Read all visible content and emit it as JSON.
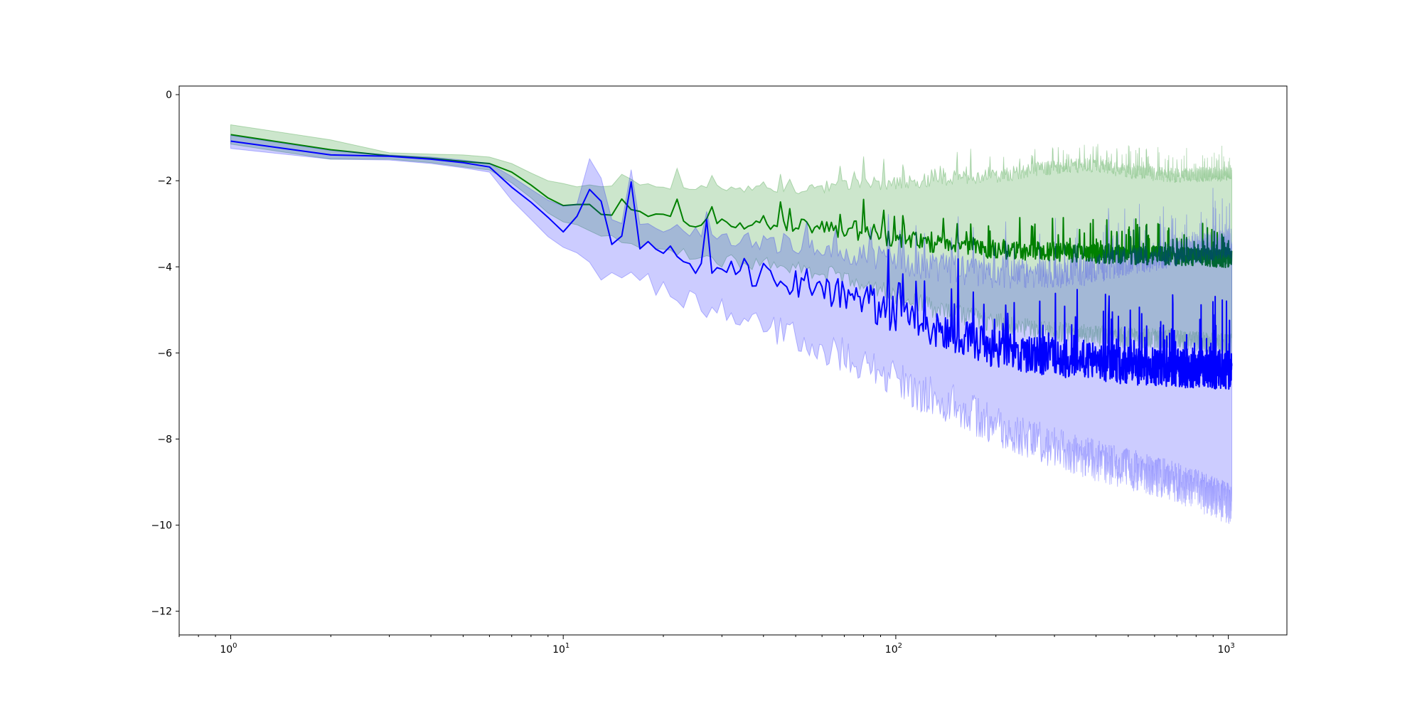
{
  "chart_data": {
    "type": "line",
    "title": "",
    "xlabel": "",
    "ylabel": "",
    "xscale": "log",
    "xlim": [
      0.7,
      1500
    ],
    "ylim": [
      -12.55,
      0.2
    ],
    "grid": false,
    "legend": "none",
    "x_ticks": [
      {
        "base": "10",
        "exp": "0",
        "value": 1
      },
      {
        "base": "10",
        "exp": "1",
        "value": 10
      },
      {
        "base": "10",
        "exp": "2",
        "value": 100
      },
      {
        "base": "10",
        "exp": "3",
        "value": 1000
      }
    ],
    "y_ticks": [
      {
        "label": "0",
        "value": 0
      },
      {
        "label": "−2",
        "value": -2
      },
      {
        "label": "−4",
        "value": -4
      },
      {
        "label": "−6",
        "value": -6
      },
      {
        "label": "−8",
        "value": -8
      },
      {
        "label": "−10",
        "value": -10
      },
      {
        "label": "−12",
        "value": -12
      }
    ],
    "series": [
      {
        "color": "#008000",
        "band_color": "#008000",
        "band_opacity": 0.2,
        "mean_points": [
          [
            1,
            -0.93
          ],
          [
            2,
            -1.28
          ],
          [
            3,
            -1.42
          ],
          [
            4,
            -1.48
          ],
          [
            5,
            -1.55
          ],
          [
            6,
            -1.6
          ],
          [
            7,
            -1.8
          ],
          [
            8,
            -2.1
          ],
          [
            9,
            -2.4
          ],
          [
            10,
            -2.55
          ],
          [
            12,
            -2.6
          ],
          [
            14,
            -2.85
          ],
          [
            16,
            -2.75
          ],
          [
            20,
            -2.85
          ],
          [
            25,
            -2.95
          ],
          [
            30,
            -3.0
          ],
          [
            40,
            -3.0
          ],
          [
            50,
            -3.05
          ],
          [
            60,
            -3.1
          ],
          [
            80,
            -3.25
          ],
          [
            100,
            -3.35
          ],
          [
            150,
            -3.5
          ],
          [
            200,
            -3.6
          ],
          [
            300,
            -3.65
          ],
          [
            400,
            -3.7
          ],
          [
            500,
            -3.72
          ],
          [
            700,
            -3.75
          ],
          [
            1000,
            -3.8
          ]
        ],
        "upper_points": [
          [
            1,
            -0.7
          ],
          [
            2,
            -1.05
          ],
          [
            3,
            -1.35
          ],
          [
            4,
            -1.38
          ],
          [
            5,
            -1.4
          ],
          [
            6,
            -1.45
          ],
          [
            7,
            -1.6
          ],
          [
            8,
            -1.82
          ],
          [
            9,
            -2.0
          ],
          [
            10,
            -2.1
          ],
          [
            12,
            -2.15
          ],
          [
            14,
            -2.2
          ],
          [
            16,
            -2.05
          ],
          [
            20,
            -2.15
          ],
          [
            25,
            -2.2
          ],
          [
            30,
            -2.25
          ],
          [
            40,
            -2.25
          ],
          [
            50,
            -2.25
          ],
          [
            60,
            -2.2
          ],
          [
            80,
            -2.15
          ],
          [
            100,
            -2.1
          ],
          [
            150,
            -2.0
          ],
          [
            200,
            -1.95
          ],
          [
            300,
            -1.75
          ],
          [
            400,
            -1.7
          ],
          [
            500,
            -1.85
          ],
          [
            700,
            -1.95
          ],
          [
            1000,
            -1.9
          ]
        ],
        "lower_points": [
          [
            1,
            -1.15
          ],
          [
            2,
            -1.5
          ],
          [
            3,
            -1.5
          ],
          [
            4,
            -1.58
          ],
          [
            5,
            -1.68
          ],
          [
            6,
            -1.75
          ],
          [
            7,
            -2.05
          ],
          [
            8,
            -2.4
          ],
          [
            9,
            -2.75
          ],
          [
            10,
            -3.0
          ],
          [
            12,
            -3.1
          ],
          [
            14,
            -3.3
          ],
          [
            16,
            -3.4
          ],
          [
            20,
            -3.55
          ],
          [
            25,
            -3.7
          ],
          [
            30,
            -3.8
          ],
          [
            40,
            -3.85
          ],
          [
            50,
            -3.95
          ],
          [
            60,
            -4.05
          ],
          [
            80,
            -4.3
          ],
          [
            100,
            -4.6
          ],
          [
            150,
            -5.0
          ],
          [
            200,
            -5.2
          ],
          [
            300,
            -5.4
          ],
          [
            400,
            -5.5
          ],
          [
            500,
            -5.55
          ],
          [
            700,
            -5.6
          ],
          [
            1000,
            -5.7
          ]
        ],
        "noise_start": 10,
        "mean_noise_amp": 0.22,
        "band_noise_amp": 0.35
      },
      {
        "color": "#0000ff",
        "band_color": "#0000ff",
        "band_opacity": 0.2,
        "mean_points": [
          [
            1,
            -1.08
          ],
          [
            2,
            -1.4
          ],
          [
            3,
            -1.43
          ],
          [
            4,
            -1.5
          ],
          [
            5,
            -1.58
          ],
          [
            6,
            -1.68
          ],
          [
            7,
            -2.15
          ],
          [
            8,
            -2.5
          ],
          [
            9,
            -2.85
          ],
          [
            10,
            -3.1
          ],
          [
            11,
            -2.75
          ],
          [
            12,
            -3.3
          ],
          [
            14,
            -3.55
          ],
          [
            16,
            -3.3
          ],
          [
            20,
            -3.7
          ],
          [
            25,
            -3.9
          ],
          [
            30,
            -4.05
          ],
          [
            40,
            -4.2
          ],
          [
            50,
            -4.35
          ],
          [
            60,
            -4.5
          ],
          [
            80,
            -4.8
          ],
          [
            100,
            -5.1
          ],
          [
            150,
            -5.6
          ],
          [
            200,
            -5.9
          ],
          [
            300,
            -6.1
          ],
          [
            400,
            -6.2
          ],
          [
            500,
            -6.3
          ],
          [
            700,
            -6.35
          ],
          [
            1000,
            -6.4
          ]
        ],
        "upper_points": [
          [
            1,
            -0.95
          ],
          [
            2,
            -1.3
          ],
          [
            3,
            -1.4
          ],
          [
            4,
            -1.45
          ],
          [
            5,
            -1.52
          ],
          [
            6,
            -1.6
          ],
          [
            7,
            -1.9
          ],
          [
            8,
            -2.2
          ],
          [
            9,
            -2.45
          ],
          [
            10,
            -2.55
          ],
          [
            12,
            -2.6
          ],
          [
            14,
            -2.9
          ],
          [
            16,
            -2.95
          ],
          [
            20,
            -3.1
          ],
          [
            25,
            -3.25
          ],
          [
            30,
            -3.4
          ],
          [
            40,
            -3.5
          ],
          [
            50,
            -3.6
          ],
          [
            60,
            -3.7
          ],
          [
            80,
            -3.85
          ],
          [
            100,
            -4.0
          ],
          [
            150,
            -4.2
          ],
          [
            200,
            -4.3
          ],
          [
            300,
            -4.3
          ],
          [
            400,
            -4.2
          ],
          [
            500,
            -4.0
          ],
          [
            700,
            -3.8
          ],
          [
            1000,
            -3.6
          ]
        ],
        "lower_points": [
          [
            1,
            -1.25
          ],
          [
            2,
            -1.5
          ],
          [
            3,
            -1.52
          ],
          [
            4,
            -1.6
          ],
          [
            5,
            -1.7
          ],
          [
            6,
            -1.8
          ],
          [
            7,
            -2.45
          ],
          [
            8,
            -2.9
          ],
          [
            9,
            -3.3
          ],
          [
            10,
            -3.6
          ],
          [
            12,
            -3.9
          ],
          [
            14,
            -4.2
          ],
          [
            16,
            -4.1
          ],
          [
            20,
            -4.45
          ],
          [
            25,
            -4.7
          ],
          [
            30,
            -4.9
          ],
          [
            40,
            -5.2
          ],
          [
            50,
            -5.45
          ],
          [
            60,
            -5.7
          ],
          [
            80,
            -6.05
          ],
          [
            100,
            -6.45
          ],
          [
            150,
            -7.0
          ],
          [
            200,
            -7.5
          ],
          [
            300,
            -8.0
          ],
          [
            400,
            -8.3
          ],
          [
            500,
            -8.5
          ],
          [
            700,
            -8.8
          ],
          [
            1000,
            -9.3
          ]
        ],
        "noise_start": 10,
        "mean_noise_amp": 0.45,
        "band_noise_amp": 0.7
      }
    ]
  }
}
